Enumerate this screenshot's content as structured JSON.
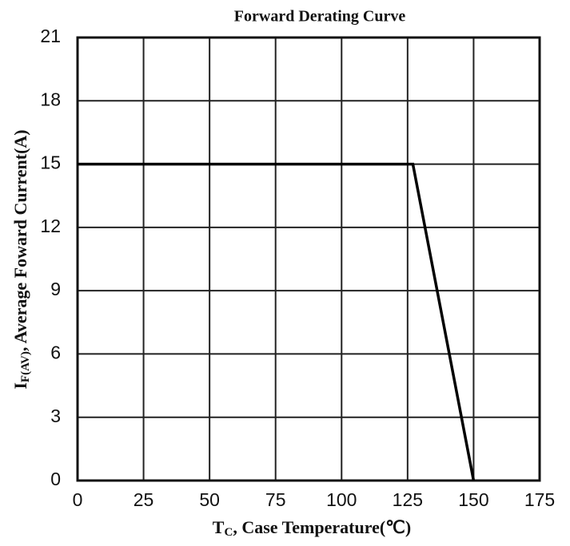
{
  "chart_data": {
    "type": "line",
    "title": "Forward Derating Curve",
    "x_label": {
      "main": "T",
      "sub": "C",
      "rest": ", Case Temperature(℃)"
    },
    "y_label": {
      "main": "I",
      "sub": "F(AV)",
      "rest": ", Average Foward Current(A)"
    },
    "x": [
      0,
      127,
      150
    ],
    "series": [
      {
        "color": "#000000",
        "values": [
          15,
          15,
          0
        ]
      }
    ],
    "xlim": [
      0,
      175
    ],
    "xticks": [
      0,
      25,
      50,
      75,
      100,
      125,
      150,
      175
    ],
    "ylim": [
      0,
      21
    ],
    "yticks": [
      0,
      3,
      6,
      9,
      12,
      15,
      18,
      21
    ],
    "grid": true
  }
}
